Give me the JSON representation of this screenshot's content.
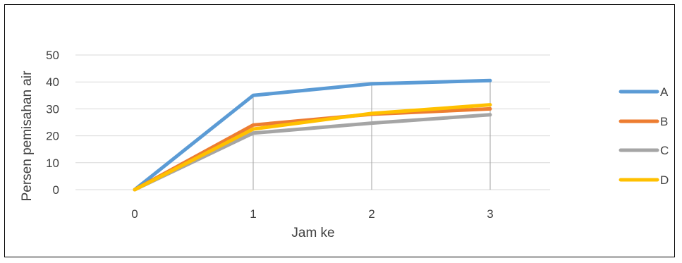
{
  "chart_data": {
    "type": "line",
    "title": "",
    "xlabel": "Jam ke",
    "ylabel": "Persen pemisahan air",
    "categories": [
      "0",
      "1",
      "2",
      "3"
    ],
    "ylim": [
      0,
      50
    ],
    "yticks": [
      "0",
      "10",
      "20",
      "30",
      "40",
      "50"
    ],
    "grid": true,
    "legend_position": "right",
    "series": [
      {
        "name": "A",
        "color": "#5B9BD5",
        "values": [
          0,
          35,
          39.3,
          40.5
        ]
      },
      {
        "name": "B",
        "color": "#ED7D31",
        "values": [
          0,
          24,
          28,
          30
        ]
      },
      {
        "name": "C",
        "color": "#A5A5A5",
        "values": [
          0,
          21,
          24.7,
          27.8
        ]
      },
      {
        "name": "D",
        "color": "#FFC000",
        "values": [
          0,
          22.5,
          28.3,
          31.5
        ]
      }
    ]
  }
}
